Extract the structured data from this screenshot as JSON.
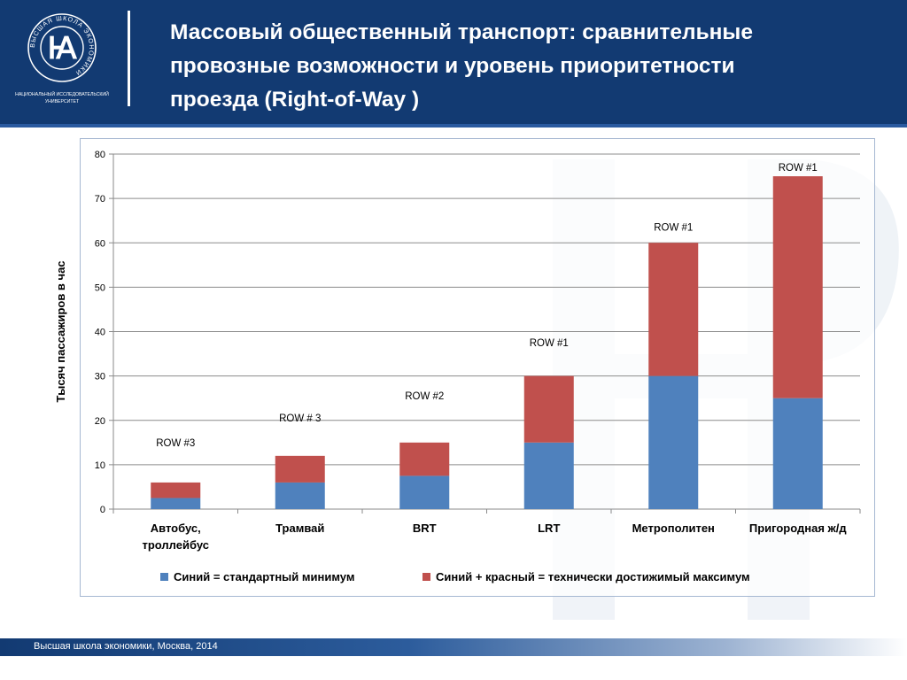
{
  "header": {
    "title_line1": "Массовый общественный транспорт: сравнительные",
    "title_line2": "провозные возможности  и  уровень приоритетности",
    "title_line3": "проезда  (Right-of-Way )"
  },
  "logo": {
    "ring_text": "ВЫСШАЯ ШКОЛА ЭКОНОМИКИ",
    "caption_line1": "НАЦИОНАЛЬНЫЙ ИССЛЕДОВАТЕЛЬСКИЙ",
    "caption_line2": "УНИВЕРСИТЕТ"
  },
  "footer": {
    "text": "Высшая школа экономики, Москва, 2014"
  },
  "colors": {
    "header_bg": "#123a72",
    "blue": "#4f81bd",
    "red": "#c0504d"
  },
  "chart_data": {
    "type": "bar",
    "stacked": true,
    "ylabel": "Тысяч пассажиров в час",
    "xlabel": "",
    "ylim": [
      0,
      80
    ],
    "yticks": [
      0,
      10,
      20,
      30,
      40,
      50,
      60,
      70,
      80
    ],
    "grid": true,
    "legend_position": "bottom",
    "categories": [
      [
        "Автобус,",
        "троллейбус"
      ],
      [
        "Трамвай"
      ],
      [
        "BRT"
      ],
      [
        "LRT"
      ],
      [
        "Метрополитен"
      ],
      [
        "Пригородная ж/д"
      ]
    ],
    "series": [
      {
        "name": "Синий = стандартный минимум",
        "color": "#4f81bd",
        "values": [
          2.5,
          6,
          7.5,
          15,
          30,
          25
        ]
      },
      {
        "name": "Синий + красный = технически достижимый максимум",
        "color": "#c0504d",
        "values": [
          3.5,
          6,
          7.5,
          15,
          30,
          50
        ]
      }
    ],
    "annotations": [
      {
        "category_index": 0,
        "text": "ROW #3",
        "y": 15
      },
      {
        "category_index": 1,
        "text": "ROW # 3",
        "y": 20.5
      },
      {
        "category_index": 2,
        "text": "ROW #2",
        "y": 25.5
      },
      {
        "category_index": 3,
        "text": "ROW #1",
        "y": 37.5
      },
      {
        "category_index": 4,
        "text": "ROW #1",
        "y": 63.5
      },
      {
        "category_index": 5,
        "text": "ROW #1",
        "y": 77
      }
    ]
  }
}
